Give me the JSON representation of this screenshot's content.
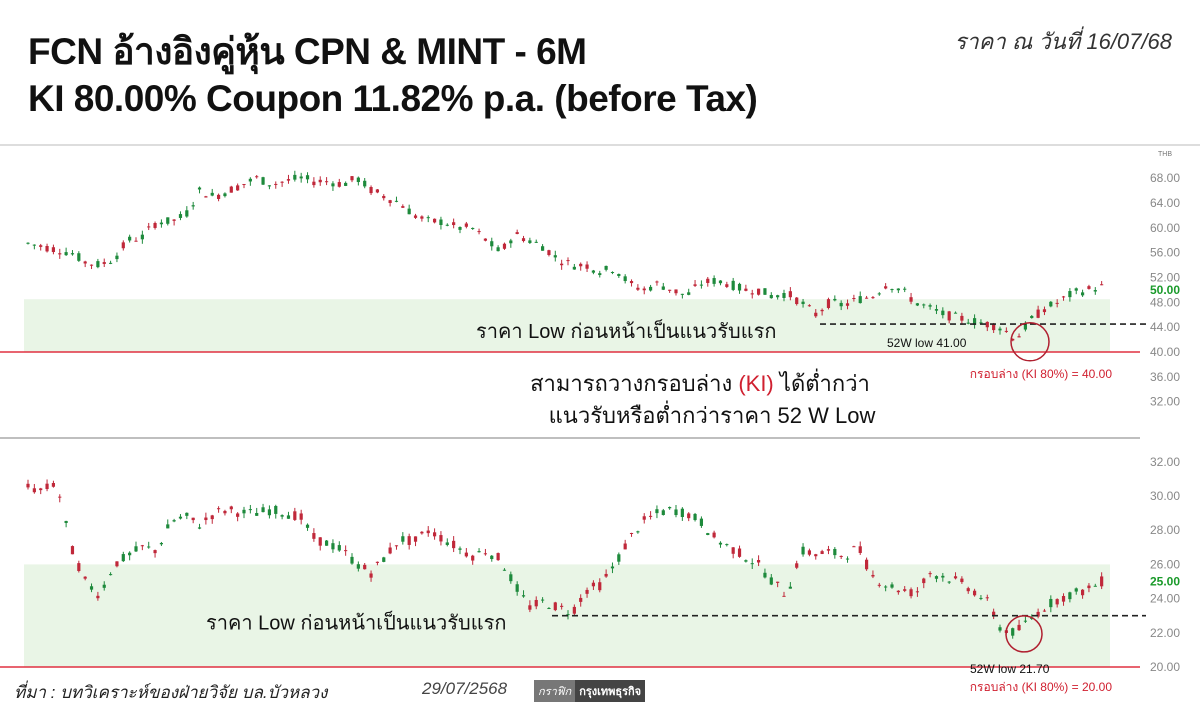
{
  "header": {
    "title_line1": "FCN อ้างอิงคู่หุ้น CPN & MINT - 6M",
    "title_line2": "KI 80.00% Coupon 11.82% p.a. (before Tax)",
    "price_date": "ราคา ณ วันที่ 16/07/68"
  },
  "footer": {
    "source": "ที่มา : บทวิเคราะห์ของฝ่ายวิจัย บล.บัวหลวง",
    "date": "29/07/2568",
    "brand_graphic": "กราฟิก",
    "brand_name": "กรุงเทพธุรกิจ"
  },
  "colors": {
    "up": "#1e8a3c",
    "down": "#c0283a",
    "ki_line": "#e03040",
    "zone": "#e9f5e6",
    "last_price": "#1a9a2a"
  },
  "middle_text": {
    "line1_prefix": "สามารถวางกรอบล่าง ",
    "line1_highlight": "(KI)",
    "line1_suffix": " ได้ต่ำกว่า",
    "line2": "แนวรับหรือต่ำกว่าราคา 52 W Low"
  },
  "chart_data": [
    {
      "type": "candlestick",
      "stock": "CPN",
      "currency_label": "THB",
      "y_ticks": [
        40,
        44,
        48,
        52,
        56,
        60,
        64,
        68
      ],
      "extra_ticks": [
        36,
        32
      ],
      "ylim": [
        40,
        70
      ],
      "last_price": 50.0,
      "last_price_label": "50.00",
      "ki_level": 40.0,
      "ki_label": "กรอบล่าง (KI 80%) = 40.00",
      "low_52w": 41.0,
      "low_52w_label": "52W low 41.00",
      "support_level": 44.5,
      "support_label": "ราคา Low ก่อนหน้าเป็นแนวรับแรก",
      "path": [
        57.5,
        57,
        56.5,
        56,
        54.5,
        54,
        55,
        58,
        58.5,
        61,
        61,
        62,
        66,
        65,
        66,
        67,
        68,
        67,
        67.5,
        68,
        67.5,
        67.5,
        67,
        68,
        66,
        65,
        64,
        62,
        61,
        61,
        60,
        60,
        58,
        56,
        59,
        58,
        57,
        55,
        54,
        54,
        53,
        53.5,
        51,
        50,
        51,
        50,
        49,
        51,
        51.5,
        51,
        50,
        50,
        49,
        49.5,
        48,
        46,
        48,
        47.5,
        48.5,
        49,
        51,
        50,
        48,
        47,
        46,
        45.5,
        45,
        44.5,
        44,
        42,
        45,
        47,
        48,
        49.5,
        50,
        50.5
      ]
    },
    {
      "type": "candlestick",
      "stock": "MINT",
      "y_ticks": [
        20,
        22,
        24,
        26,
        28,
        30,
        32
      ],
      "ylim": [
        20,
        32
      ],
      "last_price": 25.0,
      "last_price_label": "25.00",
      "ki_level": 20.0,
      "ki_label": "กรอบล่าง (KI 80%) = 20.00",
      "low_52w": 21.7,
      "low_52w_label": "52W low 21.70",
      "support_level": 23.0,
      "support_label": "ราคา Low ก่อนหน้าเป็นแนวรับแรก",
      "path": [
        30.5,
        30.3,
        30.8,
        27.0,
        25.0,
        24.2,
        26.0,
        26.5,
        27.0,
        26.8,
        28.5,
        28.8,
        28.3,
        29.0,
        29.2,
        29.0,
        29.0,
        29.2,
        29.0,
        28.8,
        27.5,
        27.2,
        26.8,
        26.0,
        25.5,
        26.5,
        27.5,
        27.3,
        28.0,
        27.5,
        27.0,
        26.5,
        26.8,
        26.3,
        24.8,
        23.5,
        23.8,
        23.5,
        23.2,
        24.5,
        24.8,
        26.0,
        27.5,
        28.5,
        29.0,
        29.2,
        29.0,
        28.5,
        27.5,
        27.0,
        26.5,
        26.0,
        25.0,
        24.2,
        26.8,
        26.6,
        26.7,
        26.5,
        27.0,
        25.3,
        24.8,
        24.5,
        24.3,
        25.5,
        25.3,
        25.0,
        24.5,
        23.8,
        22.2,
        22.0,
        22.8,
        23.5,
        24.0,
        24.3,
        24.5,
        25.0
      ]
    }
  ]
}
